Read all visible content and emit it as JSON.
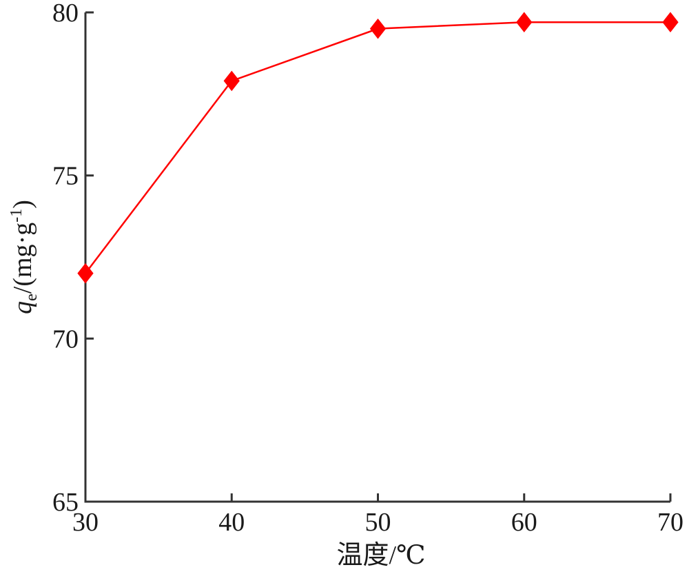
{
  "chart_data": {
    "type": "line",
    "x": [
      30,
      40,
      50,
      60,
      70
    ],
    "series": [
      {
        "values": [
          72.0,
          77.9,
          79.5,
          79.7,
          79.7
        ],
        "color": "#ff0000",
        "marker": "diamond"
      }
    ],
    "xlim": [
      30,
      70
    ],
    "ylim": [
      65,
      80
    ],
    "xticks": [
      30,
      40,
      50,
      60,
      70
    ],
    "yticks": [
      65,
      70,
      75,
      80
    ],
    "xticklabels": [
      "30",
      "40",
      "50",
      "60",
      "70"
    ],
    "yticklabels": [
      "65",
      "70",
      "75",
      "80"
    ],
    "xlabel": "温度/℃",
    "ylabel": {
      "q": "q",
      "sub": "e",
      "unit_prefix": "/(mg·g",
      "sup": "-1",
      "unit_suffix": ")"
    },
    "grid": false,
    "axis_color": "#333333"
  }
}
